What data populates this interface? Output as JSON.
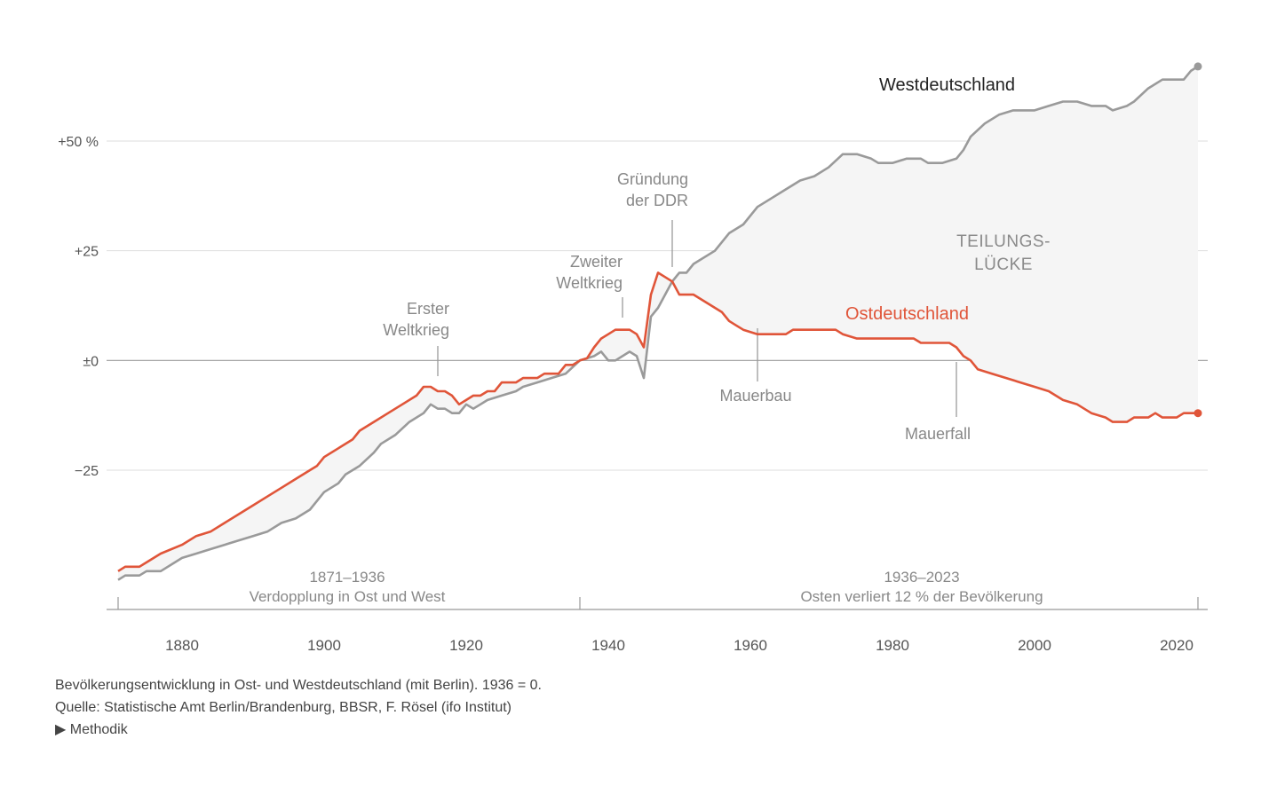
{
  "chart_data": {
    "type": "line",
    "title": "",
    "xlabel": "",
    "ylabel": "",
    "xlim": [
      1871,
      2023
    ],
    "ylim": [
      -57,
      68
    ],
    "x_ticks": [
      1880,
      1900,
      1920,
      1940,
      1960,
      1980,
      2000,
      2020
    ],
    "y_ticks": [
      {
        "value": 50,
        "label": "+50 %"
      },
      {
        "value": 25,
        "label": "+25"
      },
      {
        "value": 0,
        "label": "±0"
      },
      {
        "value": -25,
        "label": "−25"
      }
    ],
    "series": [
      {
        "name": "Westdeutschland",
        "color": "#9a9a9a",
        "points": [
          [
            1871,
            -50
          ],
          [
            1872,
            -49
          ],
          [
            1874,
            -49
          ],
          [
            1875,
            -48
          ],
          [
            1877,
            -48
          ],
          [
            1880,
            -45
          ],
          [
            1882,
            -44
          ],
          [
            1884,
            -43
          ],
          [
            1886,
            -42
          ],
          [
            1888,
            -41
          ],
          [
            1890,
            -40
          ],
          [
            1892,
            -39
          ],
          [
            1894,
            -37
          ],
          [
            1896,
            -36
          ],
          [
            1898,
            -34
          ],
          [
            1899,
            -32
          ],
          [
            1900,
            -30
          ],
          [
            1902,
            -28
          ],
          [
            1903,
            -26
          ],
          [
            1905,
            -24
          ],
          [
            1907,
            -21
          ],
          [
            1908,
            -19
          ],
          [
            1910,
            -17
          ],
          [
            1912,
            -14
          ],
          [
            1914,
            -12
          ],
          [
            1915,
            -10
          ],
          [
            1916,
            -11
          ],
          [
            1917,
            -11
          ],
          [
            1918,
            -12
          ],
          [
            1919,
            -12
          ],
          [
            1920,
            -10
          ],
          [
            1921,
            -11
          ],
          [
            1922,
            -10
          ],
          [
            1923,
            -9
          ],
          [
            1925,
            -8
          ],
          [
            1927,
            -7
          ],
          [
            1928,
            -6
          ],
          [
            1930,
            -5
          ],
          [
            1932,
            -4
          ],
          [
            1934,
            -3
          ],
          [
            1936,
            0
          ],
          [
            1937,
            0.5
          ],
          [
            1938,
            1
          ],
          [
            1939,
            2
          ],
          [
            1940,
            0
          ],
          [
            1941,
            0
          ],
          [
            1942,
            1
          ],
          [
            1943,
            2
          ],
          [
            1944,
            1
          ],
          [
            1945,
            -4
          ],
          [
            1946,
            10
          ],
          [
            1947,
            12
          ],
          [
            1948,
            15
          ],
          [
            1949,
            18
          ],
          [
            1950,
            20
          ],
          [
            1951,
            20
          ],
          [
            1952,
            22
          ],
          [
            1955,
            25
          ],
          [
            1957,
            29
          ],
          [
            1959,
            31
          ],
          [
            1961,
            35
          ],
          [
            1963,
            37
          ],
          [
            1965,
            39
          ],
          [
            1967,
            41
          ],
          [
            1969,
            42
          ],
          [
            1971,
            44
          ],
          [
            1973,
            47
          ],
          [
            1975,
            47
          ],
          [
            1977,
            46
          ],
          [
            1978,
            45
          ],
          [
            1980,
            45
          ],
          [
            1982,
            46
          ],
          [
            1984,
            46
          ],
          [
            1985,
            45
          ],
          [
            1987,
            45
          ],
          [
            1989,
            46
          ],
          [
            1990,
            48
          ],
          [
            1991,
            51
          ],
          [
            1993,
            54
          ],
          [
            1995,
            56
          ],
          [
            1997,
            57
          ],
          [
            2000,
            57
          ],
          [
            2002,
            58
          ],
          [
            2004,
            59
          ],
          [
            2006,
            59
          ],
          [
            2008,
            58
          ],
          [
            2010,
            58
          ],
          [
            2011,
            57
          ],
          [
            2013,
            58
          ],
          [
            2014,
            59
          ],
          [
            2016,
            62
          ],
          [
            2018,
            64
          ],
          [
            2020,
            64
          ],
          [
            2021,
            64
          ],
          [
            2022,
            66
          ],
          [
            2023,
            67
          ]
        ]
      },
      {
        "name": "Ostdeutschland",
        "color": "#e05539",
        "points": [
          [
            1871,
            -48
          ],
          [
            1872,
            -47
          ],
          [
            1874,
            -47
          ],
          [
            1875,
            -46
          ],
          [
            1877,
            -44
          ],
          [
            1880,
            -42
          ],
          [
            1882,
            -40
          ],
          [
            1884,
            -39
          ],
          [
            1886,
            -37
          ],
          [
            1888,
            -35
          ],
          [
            1890,
            -33
          ],
          [
            1892,
            -31
          ],
          [
            1894,
            -29
          ],
          [
            1896,
            -27
          ],
          [
            1898,
            -25
          ],
          [
            1899,
            -24
          ],
          [
            1900,
            -22
          ],
          [
            1902,
            -20
          ],
          [
            1904,
            -18
          ],
          [
            1905,
            -16
          ],
          [
            1907,
            -14
          ],
          [
            1909,
            -12
          ],
          [
            1911,
            -10
          ],
          [
            1913,
            -8
          ],
          [
            1914,
            -6
          ],
          [
            1915,
            -6
          ],
          [
            1916,
            -7
          ],
          [
            1917,
            -7
          ],
          [
            1918,
            -8
          ],
          [
            1919,
            -10
          ],
          [
            1920,
            -9
          ],
          [
            1921,
            -8
          ],
          [
            1922,
            -8
          ],
          [
            1923,
            -7
          ],
          [
            1924,
            -7
          ],
          [
            1925,
            -5
          ],
          [
            1927,
            -5
          ],
          [
            1928,
            -4
          ],
          [
            1930,
            -4
          ],
          [
            1931,
            -3
          ],
          [
            1933,
            -3
          ],
          [
            1934,
            -1
          ],
          [
            1935,
            -1
          ],
          [
            1936,
            0
          ],
          [
            1937,
            0.5
          ],
          [
            1938,
            3
          ],
          [
            1939,
            5
          ],
          [
            1940,
            6
          ],
          [
            1941,
            7
          ],
          [
            1942,
            7
          ],
          [
            1943,
            7
          ],
          [
            1944,
            6
          ],
          [
            1945,
            3
          ],
          [
            1946,
            15
          ],
          [
            1947,
            20
          ],
          [
            1948,
            19
          ],
          [
            1949,
            18
          ],
          [
            1950,
            15
          ],
          [
            1951,
            15
          ],
          [
            1952,
            15
          ],
          [
            1954,
            13
          ],
          [
            1956,
            11
          ],
          [
            1957,
            9
          ],
          [
            1958,
            8
          ],
          [
            1959,
            7
          ],
          [
            1961,
            6
          ],
          [
            1963,
            6
          ],
          [
            1965,
            6
          ],
          [
            1966,
            7
          ],
          [
            1970,
            7
          ],
          [
            1972,
            7
          ],
          [
            1973,
            6
          ],
          [
            1975,
            5
          ],
          [
            1977,
            5
          ],
          [
            1980,
            5
          ],
          [
            1983,
            5
          ],
          [
            1984,
            4
          ],
          [
            1986,
            4
          ],
          [
            1988,
            4
          ],
          [
            1989,
            3
          ],
          [
            1990,
            1
          ],
          [
            1991,
            0
          ],
          [
            1992,
            -2
          ],
          [
            1994,
            -3
          ],
          [
            1996,
            -4
          ],
          [
            1998,
            -5
          ],
          [
            2000,
            -6
          ],
          [
            2002,
            -7
          ],
          [
            2004,
            -9
          ],
          [
            2006,
            -10
          ],
          [
            2008,
            -12
          ],
          [
            2010,
            -13
          ],
          [
            2011,
            -14
          ],
          [
            2013,
            -14
          ],
          [
            2014,
            -13
          ],
          [
            2016,
            -13
          ],
          [
            2017,
            -12
          ],
          [
            2018,
            -13
          ],
          [
            2020,
            -13
          ],
          [
            2021,
            -12
          ],
          [
            2023,
            -12
          ]
        ]
      }
    ],
    "series_labels": {
      "west": "Westdeutschland",
      "east": "Ostdeutschland"
    },
    "gap_label": [
      "TEILUNGS-",
      "LÜCKE"
    ],
    "annotations": [
      {
        "key": "erster-weltkrieg",
        "year": 1916,
        "lines": [
          "Erster",
          "Weltkrieg"
        ]
      },
      {
        "key": "zweiter-weltkrieg",
        "year": 1942,
        "lines": [
          "Zweiter",
          "Weltkrieg"
        ]
      },
      {
        "key": "gruendung-ddr",
        "year": 1949,
        "lines": [
          "Gründung",
          "der DDR"
        ]
      },
      {
        "key": "mauerbau",
        "year": 1961,
        "lines": [
          "Mauerbau"
        ]
      },
      {
        "key": "mauerfall",
        "year": 1989,
        "lines": [
          "Mauerfall"
        ]
      }
    ],
    "periods": [
      {
        "from": 1871,
        "to": 1936,
        "range": "1871–1936",
        "caption": "Verdopplung in Ost und West"
      },
      {
        "from": 1936,
        "to": 2023,
        "range": "1936–2023",
        "caption": "Osten verliert 12 % der Bevölkerung"
      }
    ],
    "grid": true
  },
  "footer": {
    "note": "Bevölkerungsentwicklung in Ost- und Westdeutschland (mit Berlin). 1936 = 0.",
    "source": "Quelle: Statistische Amt Berlin/Brandenburg, BBSR, F. Rösel (ifo Institut)",
    "methodik_arrow": "▶",
    "methodik_label": "Methodik"
  }
}
